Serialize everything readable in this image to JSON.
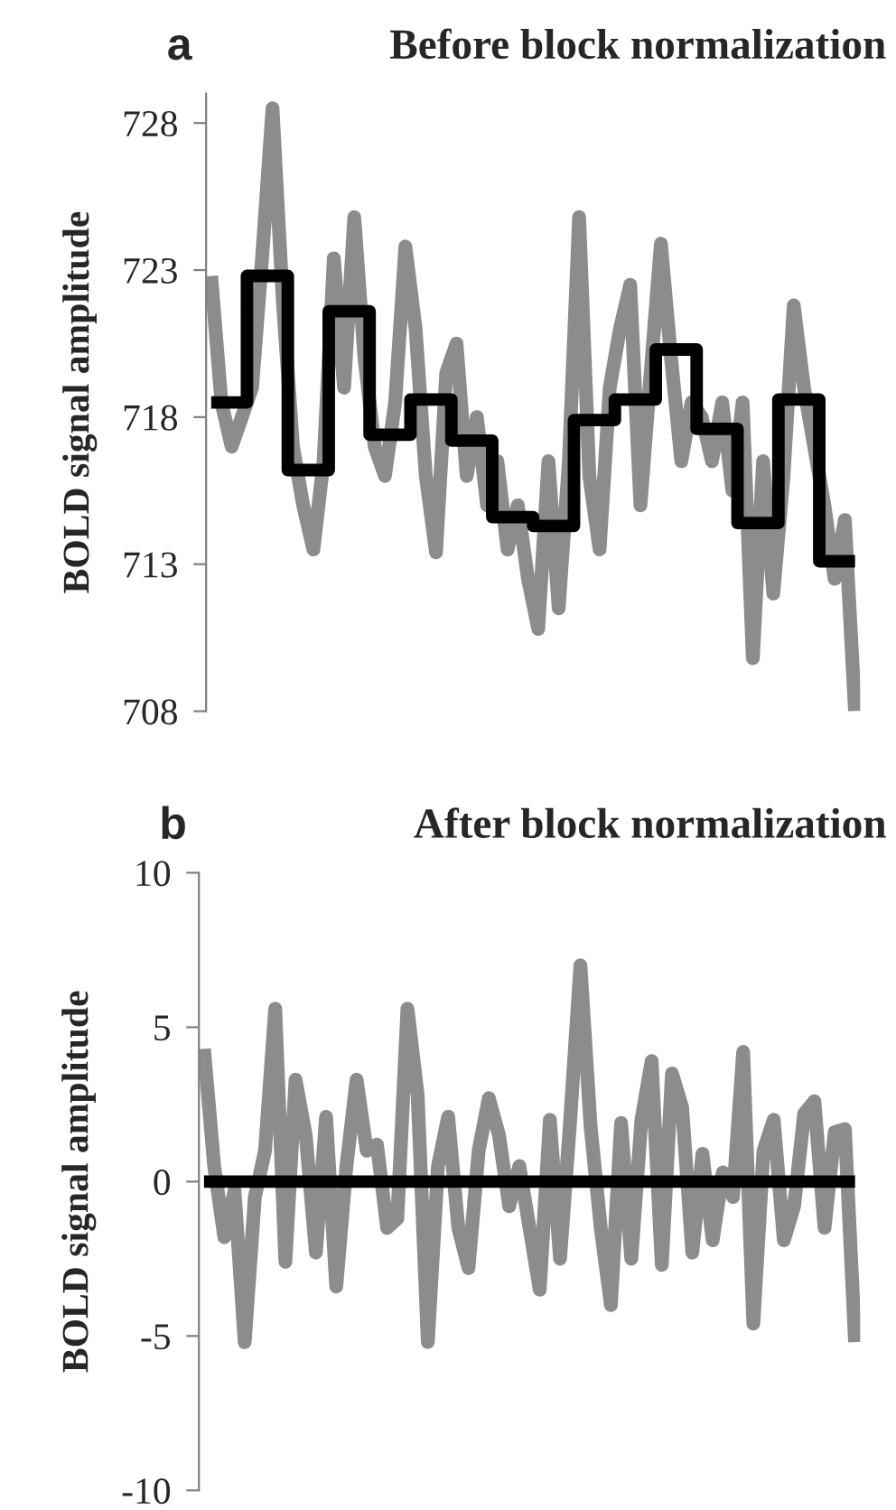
{
  "chart_data": [
    {
      "type": "line",
      "title": "Before block normalization",
      "ylabel": "BOLD signal amplitude",
      "annotations": [
        "a"
      ],
      "categories": [
        null,
        null,
        null,
        null,
        null,
        null,
        null,
        null,
        null,
        null,
        null,
        null,
        null,
        null,
        null,
        null,
        null,
        null,
        null,
        null,
        null,
        null,
        null,
        null,
        null,
        null,
        null,
        null,
        null,
        null,
        null,
        null,
        null,
        null,
        null,
        null,
        null,
        null,
        null,
        null,
        null,
        null,
        null,
        null,
        null,
        null,
        null,
        null,
        null,
        null,
        null,
        null,
        null,
        null,
        null,
        null,
        null,
        null,
        null,
        null,
        null,
        null,
        null,
        null
      ],
      "ylim": [
        708,
        729
      ],
      "yticks": [
        708,
        713,
        718,
        723,
        728
      ],
      "grid": false,
      "tick_labels": "y",
      "series": [
        {
          "color": "#8c8c8c",
          "values": [
            722.8,
            718.5,
            717,
            718,
            719,
            723.5,
            728.5,
            722,
            717,
            715,
            713.5,
            716.5,
            723.4,
            719,
            724.8,
            720,
            717,
            716,
            718.5,
            723.8,
            721,
            716,
            713.4,
            719.5,
            720.5,
            716,
            718,
            715,
            716.5,
            713.5,
            715,
            712.5,
            710.8,
            716.5,
            711.5,
            716.5,
            724.8,
            716,
            713.5,
            719,
            721,
            722.5,
            715,
            719.5,
            723.9,
            720,
            716.5,
            718.5,
            718,
            716.5,
            718.5,
            715.5,
            718.5,
            709.8,
            716.5,
            712,
            716,
            721.8,
            719,
            717,
            715,
            712.5,
            714.5,
            708
          ]
        },
        {
          "type": "step",
          "color": "#000000",
          "values": [
            718.5,
            718.5,
            718.5,
            718.5,
            722.8,
            722.8,
            722.8,
            722.8,
            716.2,
            716.2,
            716.2,
            716.2,
            721.6,
            721.6,
            721.6,
            721.6,
            717.4,
            717.4,
            717.4,
            717.4,
            718.6,
            718.6,
            718.6,
            718.6,
            717.2,
            717.2,
            717.2,
            717.2,
            714.6,
            714.6,
            714.6,
            714.6,
            714.3,
            714.3,
            714.3,
            714.3,
            717.9,
            717.9,
            717.9,
            717.9,
            718.6,
            718.6,
            718.6,
            718.6,
            720.3,
            720.3,
            720.3,
            720.3,
            717.6,
            717.6,
            717.6,
            717.6,
            714.4,
            714.4,
            714.4,
            714.4,
            718.6,
            718.6,
            718.6,
            718.6,
            713.1,
            713.1,
            713.1,
            713.1
          ]
        }
      ]
    },
    {
      "type": "line",
      "title": "After block normalization",
      "ylabel": "BOLD signal amplitude",
      "annotations": [
        "b"
      ],
      "categories": [
        null,
        null,
        null,
        null,
        null,
        null,
        null,
        null,
        null,
        null,
        null,
        null,
        null,
        null,
        null,
        null,
        null,
        null,
        null,
        null,
        null,
        null,
        null,
        null,
        null,
        null,
        null,
        null,
        null,
        null,
        null,
        null,
        null,
        null,
        null,
        null,
        null,
        null,
        null,
        null,
        null,
        null,
        null,
        null,
        null,
        null,
        null,
        null,
        null,
        null,
        null,
        null,
        null,
        null,
        null,
        null,
        null,
        null,
        null,
        null,
        null,
        null,
        null,
        null,
        null
      ],
      "ylim": [
        -10,
        10
      ],
      "yticks": [
        -10,
        -5,
        0,
        5,
        10
      ],
      "grid": false,
      "tick_labels": "y",
      "series": [
        {
          "color": "#8c8c8c",
          "values": [
            4.3,
            0.5,
            -1.8,
            -0.3,
            -5.2,
            -0.5,
            1.0,
            5.6,
            -2.6,
            3.3,
            1.5,
            -2.3,
            2.1,
            -3.4,
            0.5,
            3.3,
            1.0,
            1.2,
            -1.5,
            -1.2,
            5.6,
            2.8,
            -5.2,
            0.5,
            2.1,
            -1.5,
            -2.8,
            1.0,
            2.7,
            1.5,
            -0.8,
            0.5,
            -1.5,
            -3.5,
            2.0,
            -2.5,
            2.0,
            7.0,
            1.8,
            -1.5,
            -4.0,
            1.9,
            -2.5,
            2.0,
            3.9,
            -2.7,
            3.5,
            2.4,
            -2.3,
            0.9,
            -1.9,
            0.3,
            -0.5,
            4.2,
            -4.6,
            1.0,
            2.0,
            -1.9,
            -0.8,
            2.2,
            2.6,
            -1.5,
            1.6,
            1.7,
            -5.2
          ]
        },
        {
          "color": "#000000",
          "values": [
            0,
            0,
            0,
            0,
            0,
            0,
            0,
            0,
            0,
            0,
            0,
            0,
            0,
            0,
            0,
            0,
            0,
            0,
            0,
            0,
            0,
            0,
            0,
            0,
            0,
            0,
            0,
            0,
            0,
            0,
            0,
            0,
            0,
            0,
            0,
            0,
            0,
            0,
            0,
            0,
            0,
            0,
            0,
            0,
            0,
            0,
            0,
            0,
            0,
            0,
            0,
            0,
            0,
            0,
            0,
            0,
            0,
            0,
            0,
            0,
            0,
            0,
            0,
            0,
            0
          ]
        }
      ]
    }
  ]
}
